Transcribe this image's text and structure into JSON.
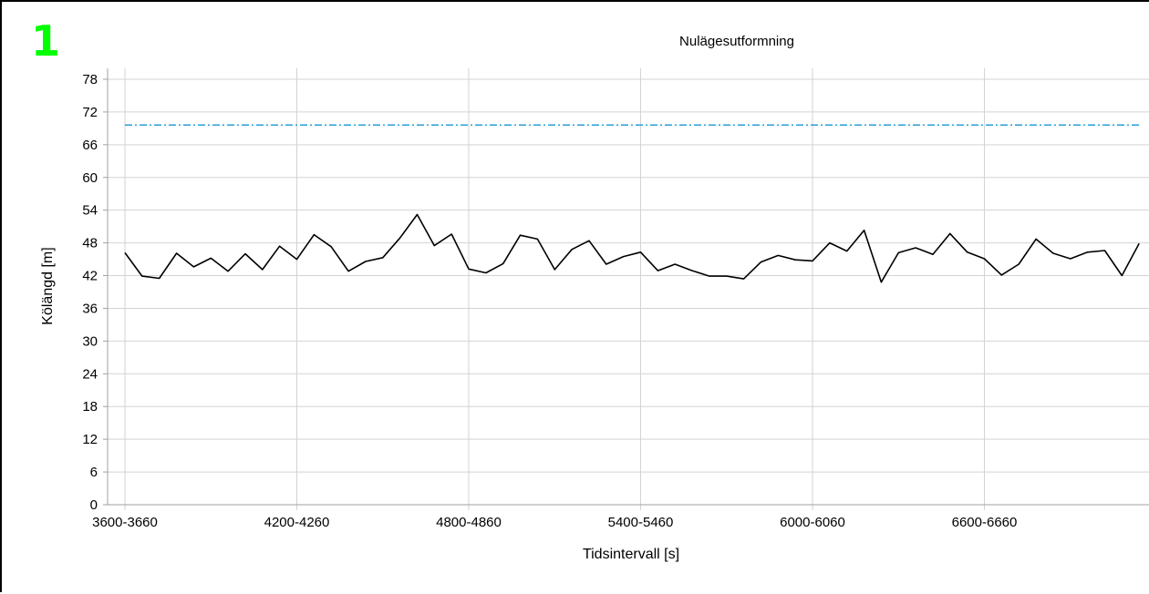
{
  "panel_number": "1",
  "chart_data": {
    "type": "line",
    "title": "Nulägesutformning",
    "xlabel": "Tidsintervall [s]",
    "ylabel": "Kölängd [m]",
    "ylim": [
      0,
      80
    ],
    "yticks": [
      0,
      6,
      12,
      18,
      24,
      30,
      36,
      42,
      48,
      54,
      60,
      66,
      72,
      78
    ],
    "x_tick_labels": [
      "3600-3660",
      "4200-4260",
      "4800-4860",
      "5400-5460",
      "6000-6060",
      "6600-6660"
    ],
    "x_tick_every": 10,
    "grid": true,
    "legend": "none",
    "series": [
      {
        "color": "#000000",
        "style": "solid",
        "values": [
          46.2,
          41.9,
          41.5,
          46.1,
          43.6,
          45.2,
          42.8,
          46.0,
          43.1,
          47.4,
          45.0,
          49.5,
          47.3,
          42.8,
          44.6,
          45.3,
          48.9,
          53.2,
          47.5,
          49.6,
          43.2,
          42.5,
          44.2,
          49.4,
          48.7,
          43.1,
          46.8,
          48.4,
          44.1,
          45.5,
          46.3,
          42.9,
          44.1,
          42.9,
          41.9,
          41.9,
          41.4,
          44.5,
          45.7,
          44.9,
          44.7,
          48.0,
          46.5,
          50.3,
          40.8,
          46.2,
          47.1,
          45.9,
          49.7,
          46.3,
          45.1,
          42.1,
          44.1,
          48.7,
          46.1,
          45.1,
          46.3,
          46.6,
          42.0,
          47.9
        ]
      },
      {
        "color": "#2a9fd8",
        "style": "dashdot",
        "values": [
          69.6,
          69.6
        ]
      }
    ]
  }
}
